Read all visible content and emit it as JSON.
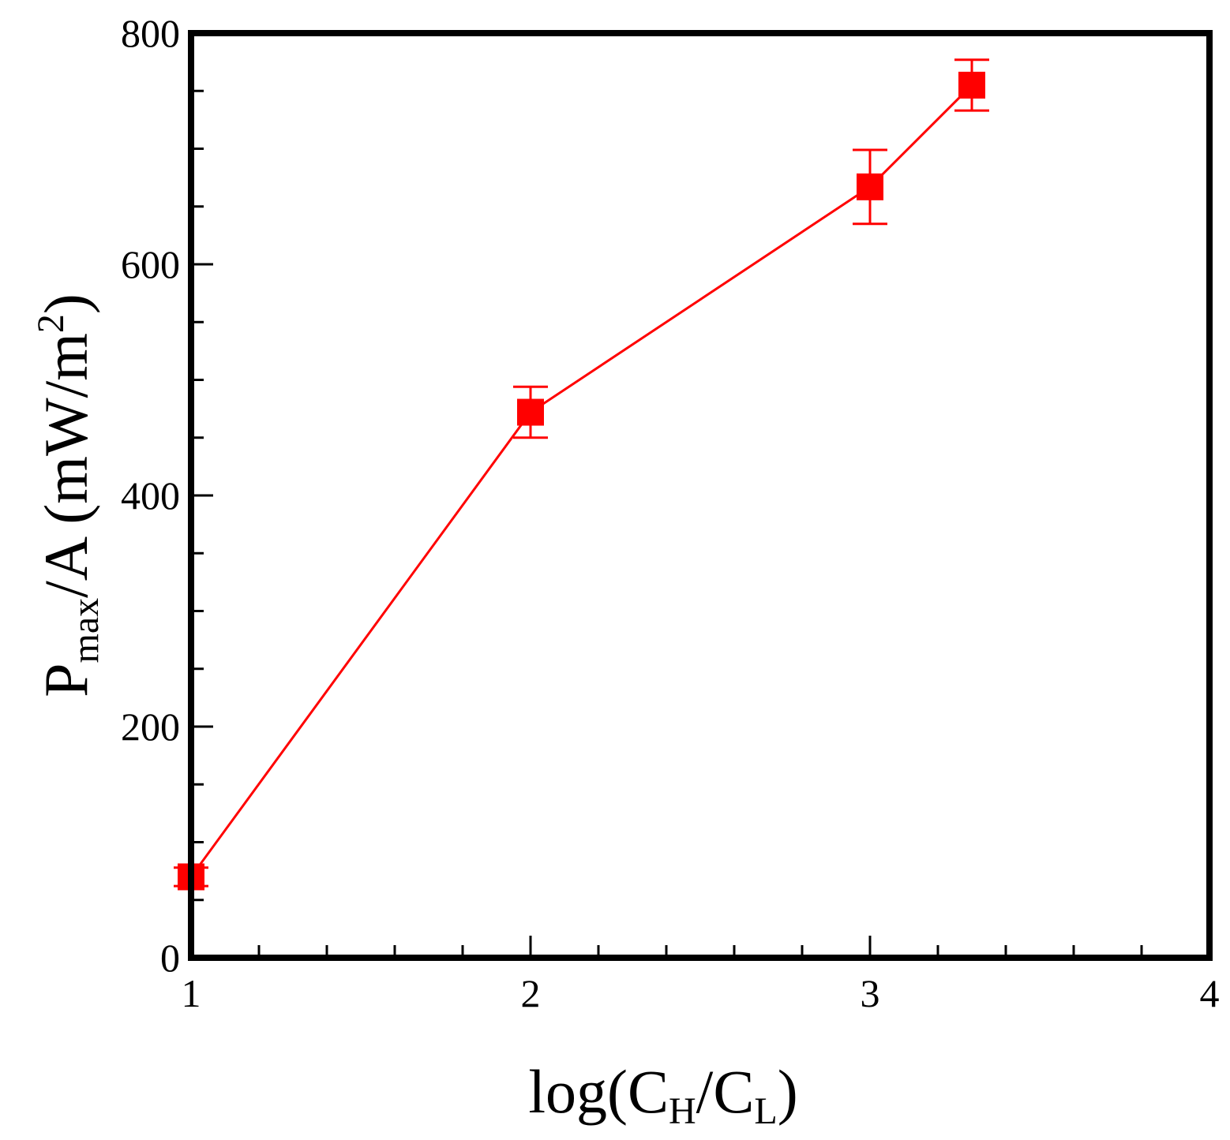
{
  "chart_data": {
    "type": "line",
    "x": [
      1,
      2,
      3,
      3.3
    ],
    "series": [
      {
        "values": [
          70,
          472,
          667,
          755
        ],
        "error": [
          8,
          22,
          32,
          22
        ],
        "color": "#ff0000",
        "marker": "square"
      }
    ],
    "xlim": [
      1,
      4
    ],
    "ylim": [
      0,
      800
    ],
    "x_ticks": [
      "1",
      "2",
      "3",
      "4"
    ],
    "y_ticks": [
      "0",
      "200",
      "400",
      "600",
      "800"
    ],
    "xlabel": {
      "prefix": "log(C",
      "sub1": "H",
      "middle": "/C",
      "sub2": "L",
      "suffix": ")"
    },
    "ylabel": {
      "prefix": "P",
      "sub": "max",
      "middle": "/A (mW/m",
      "sup": "2",
      "suffix": ")"
    },
    "grid": false,
    "legend": "none"
  }
}
